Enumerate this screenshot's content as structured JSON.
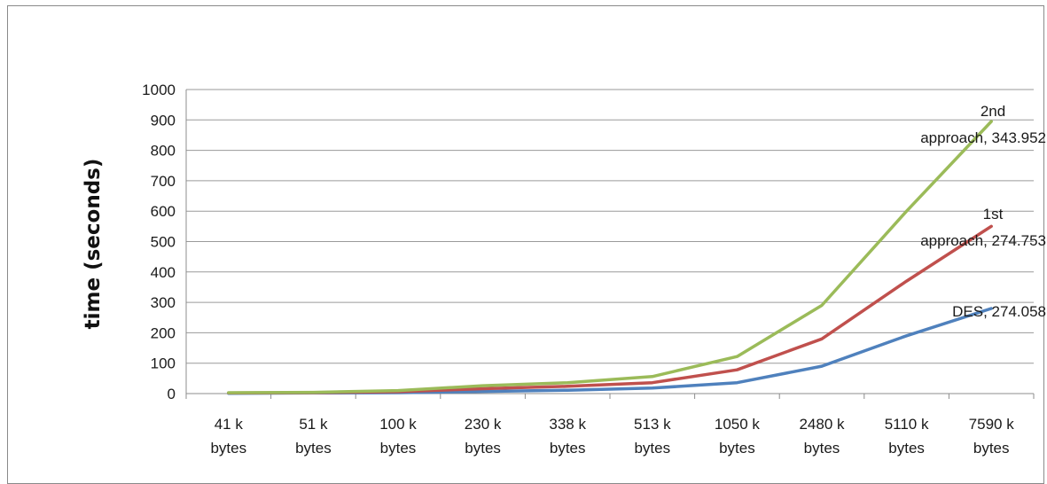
{
  "chart_data": {
    "type": "line",
    "title": "",
    "xlabel": "",
    "ylabel": "time (seconds)",
    "ylim": [
      0,
      1000
    ],
    "yticks": [
      0,
      100,
      200,
      300,
      400,
      500,
      600,
      700,
      800,
      900,
      1000
    ],
    "grid": true,
    "legend": "none",
    "categories": [
      [
        "41 k",
        "bytes"
      ],
      [
        "51 k",
        "bytes"
      ],
      [
        "100 k",
        "bytes"
      ],
      [
        "230 k",
        "bytes"
      ],
      [
        "338 k",
        "bytes"
      ],
      [
        "513 k",
        "bytes"
      ],
      [
        "1050 k",
        "bytes"
      ],
      [
        "2480 k",
        "bytes"
      ],
      [
        "5110 k",
        "bytes"
      ],
      [
        "7590 k",
        "bytes"
      ]
    ],
    "series": [
      {
        "color": "#4f81bd",
        "values": [
          1,
          2,
          3,
          7,
          11,
          18,
          36,
          90,
          190,
          280
        ],
        "label": [
          "DES, 274.058"
        ]
      },
      {
        "color": "#c0504d",
        "values": [
          2,
          3,
          6,
          16,
          24,
          36,
          78,
          180,
          370,
          550
        ],
        "label": [
          "1st",
          "approach, 274.753"
        ]
      },
      {
        "color": "#9bbb59",
        "values": [
          3,
          4,
          10,
          26,
          36,
          56,
          122,
          290,
          600,
          895
        ],
        "label": [
          "2nd",
          "approach, 343.952"
        ]
      }
    ]
  }
}
